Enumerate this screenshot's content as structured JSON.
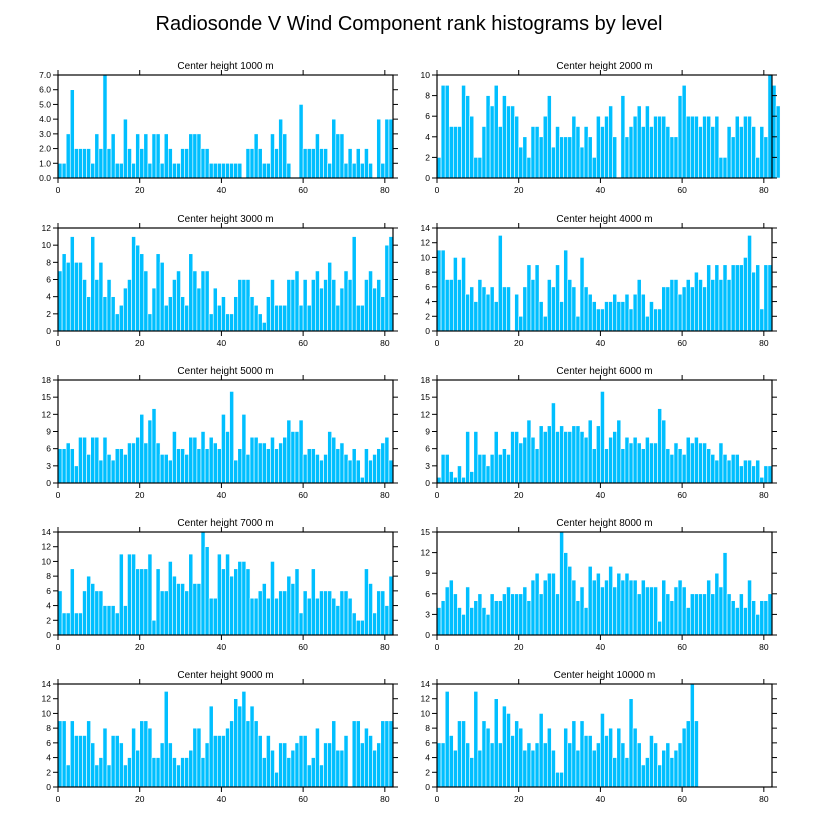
{
  "title": "Radiosonde V Wind Component rank histograms by level",
  "colors": {
    "bar": "#00bfff",
    "bar_edge": "#ffffff",
    "axis": "#000000"
  },
  "chart_data": [
    {
      "type": "bar",
      "title": "Center height 1000 m",
      "xlim": [
        0,
        82
      ],
      "ylim": [
        0,
        7
      ],
      "xticks": [
        0,
        20,
        40,
        60,
        80
      ],
      "yticks": [
        0,
        1,
        2,
        3,
        4,
        5,
        6,
        7
      ],
      "ytick_labels": [
        "0.0",
        "1.0",
        "2.0",
        "3.0",
        "4.0",
        "5.0",
        "6.0",
        "7.0"
      ],
      "values": [
        1,
        1,
        3,
        6,
        2,
        2,
        2,
        2,
        1,
        3,
        2,
        7,
        2,
        3,
        1,
        1,
        4,
        2,
        1,
        3,
        2,
        3,
        1,
        3,
        3,
        1,
        3,
        2,
        1,
        1,
        2,
        2,
        3,
        3,
        3,
        2,
        2,
        1,
        1,
        1,
        1,
        1,
        1,
        1,
        1,
        0,
        2,
        2,
        3,
        2,
        1,
        1,
        3,
        2,
        4,
        3,
        1,
        0,
        0,
        5,
        2,
        2,
        2,
        3,
        2,
        2,
        1,
        4,
        3,
        3,
        1,
        2,
        1,
        2,
        1,
        2,
        1,
        0,
        4,
        1,
        4,
        4
      ]
    },
    {
      "type": "bar",
      "title": "Center height 2000 m",
      "xlim": [
        0,
        82
      ],
      "ylim": [
        0,
        10
      ],
      "xticks": [
        0,
        20,
        40,
        60,
        80
      ],
      "yticks": [
        0,
        2,
        4,
        6,
        8,
        10
      ],
      "ytick_labels": [
        "0",
        "2",
        "4",
        "6",
        "8",
        "10"
      ],
      "values": [
        2,
        9,
        9,
        5,
        5,
        5,
        9,
        8,
        6,
        2,
        2,
        5,
        8,
        7,
        9,
        5,
        8,
        7,
        7,
        6,
        3,
        4,
        2,
        5,
        5,
        4,
        6,
        8,
        3,
        5,
        4,
        4,
        4,
        6,
        5,
        3,
        5,
        4,
        2,
        6,
        5,
        6,
        7,
        4,
        0,
        8,
        4,
        5,
        6,
        7,
        5,
        7,
        5,
        6,
        6,
        6,
        5,
        4,
        4,
        8,
        9,
        6,
        6,
        6,
        5,
        6,
        6,
        5,
        6,
        2,
        2,
        5,
        4,
        6,
        5,
        6,
        6,
        5,
        2,
        5,
        4,
        10,
        9,
        7
      ]
    },
    {
      "type": "bar",
      "title": "Center height 3000 m",
      "xlim": [
        0,
        82
      ],
      "ylim": [
        0,
        12
      ],
      "xticks": [
        0,
        20,
        40,
        60,
        80
      ],
      "yticks": [
        0,
        2,
        4,
        6,
        8,
        10,
        12
      ],
      "ytick_labels": [
        "0",
        "2",
        "4",
        "6",
        "8",
        "10",
        "12"
      ],
      "values": [
        7,
        9,
        8,
        11,
        8,
        8,
        6,
        4,
        11,
        6,
        8,
        4,
        6,
        4,
        2,
        3,
        5,
        6,
        11,
        10,
        9,
        7,
        2,
        5,
        9,
        8,
        3,
        4,
        6,
        7,
        4,
        3,
        9,
        7,
        5,
        7,
        7,
        2,
        5,
        3,
        4,
        2,
        2,
        4,
        6,
        6,
        6,
        4,
        3,
        2,
        1,
        4,
        6,
        3,
        3,
        3,
        6,
        6,
        7,
        3,
        6,
        3,
        6,
        7,
        5,
        6,
        8,
        6,
        3,
        5,
        7,
        6,
        11,
        3,
        3,
        6,
        7,
        5,
        6,
        4,
        10,
        11
      ]
    },
    {
      "type": "bar",
      "title": "Center height 4000 m",
      "xlim": [
        0,
        82
      ],
      "ylim": [
        0,
        14
      ],
      "xticks": [
        0,
        20,
        40,
        60,
        80
      ],
      "yticks": [
        0,
        2,
        4,
        6,
        8,
        10,
        12,
        14
      ],
      "ytick_labels": [
        "0",
        "2",
        "4",
        "6",
        "8",
        "10",
        "12",
        "14"
      ],
      "values": [
        11,
        11,
        7,
        7,
        10,
        7,
        10,
        5,
        6,
        4,
        7,
        6,
        5,
        6,
        4,
        13,
        6,
        6,
        0,
        5,
        2,
        6,
        9,
        7,
        9,
        4,
        2,
        7,
        6,
        9,
        4,
        11,
        7,
        6,
        2,
        10,
        6,
        5,
        4,
        3,
        3,
        4,
        4,
        5,
        4,
        4,
        5,
        3,
        5,
        7,
        5,
        2,
        4,
        3,
        3,
        6,
        6,
        7,
        7,
        5,
        6,
        7,
        6,
        8,
        7,
        6,
        9,
        7,
        9,
        7,
        9,
        7,
        9,
        9,
        9,
        10,
        13,
        8,
        9,
        3,
        9,
        9
      ]
    },
    {
      "type": "bar",
      "title": "Center height 5000 m",
      "xlim": [
        0,
        82
      ],
      "ylim": [
        0,
        18
      ],
      "xticks": [
        0,
        20,
        40,
        60,
        80
      ],
      "yticks": [
        0,
        3,
        6,
        9,
        12,
        15,
        18
      ],
      "ytick_labels": [
        "0",
        "3",
        "6",
        "9",
        "12",
        "15",
        "18"
      ],
      "values": [
        6,
        6,
        7,
        6,
        3,
        8,
        8,
        5,
        8,
        8,
        4,
        8,
        5,
        4,
        6,
        6,
        5,
        7,
        7,
        8,
        12,
        7,
        11,
        13,
        7,
        5,
        5,
        4,
        9,
        6,
        6,
        5,
        8,
        8,
        6,
        9,
        6,
        8,
        7,
        6,
        12,
        9,
        16,
        4,
        6,
        12,
        5,
        8,
        8,
        7,
        7,
        6,
        8,
        6,
        7,
        8,
        11,
        9,
        9,
        11,
        5,
        6,
        6,
        5,
        4,
        5,
        9,
        8,
        6,
        7,
        5,
        4,
        6,
        4,
        1,
        6,
        4,
        5,
        6,
        7,
        8,
        4
      ]
    },
    {
      "type": "bar",
      "title": "Center height 6000 m",
      "xlim": [
        0,
        82
      ],
      "ylim": [
        0,
        18
      ],
      "xticks": [
        0,
        20,
        40,
        60,
        80
      ],
      "yticks": [
        0,
        3,
        6,
        9,
        12,
        15,
        18
      ],
      "ytick_labels": [
        "0",
        "3",
        "6",
        "9",
        "12",
        "15",
        "18"
      ],
      "values": [
        1,
        5,
        5,
        2,
        1,
        3,
        1,
        9,
        2,
        9,
        5,
        5,
        3,
        5,
        9,
        5,
        6,
        5,
        9,
        9,
        7,
        8,
        11,
        8,
        6,
        10,
        9,
        10,
        14,
        9,
        10,
        9,
        9,
        10,
        10,
        9,
        8,
        11,
        6,
        10,
        16,
        6,
        8,
        9,
        11,
        6,
        8,
        7,
        8,
        7,
        6,
        8,
        7,
        7,
        13,
        11,
        6,
        5,
        7,
        6,
        5,
        8,
        7,
        8,
        7,
        7,
        6,
        5,
        4,
        7,
        5,
        4,
        5,
        5,
        3,
        4,
        4,
        3,
        4,
        1,
        3,
        3
      ]
    },
    {
      "type": "bar",
      "title": "Center height 7000 m",
      "xlim": [
        0,
        82
      ],
      "ylim": [
        0,
        14
      ],
      "xticks": [
        0,
        20,
        40,
        60,
        80
      ],
      "yticks": [
        0,
        2,
        4,
        6,
        8,
        10,
        12,
        14
      ],
      "ytick_labels": [
        "0",
        "2",
        "4",
        "6",
        "8",
        "10",
        "12",
        "14"
      ],
      "values": [
        6,
        3,
        3,
        9,
        3,
        3,
        6,
        8,
        7,
        6,
        6,
        4,
        4,
        4,
        3,
        11,
        4,
        11,
        11,
        9,
        9,
        9,
        11,
        2,
        9,
        6,
        6,
        10,
        8,
        7,
        7,
        6,
        11,
        7,
        7,
        14,
        12,
        5,
        5,
        11,
        9,
        11,
        8,
        9,
        10,
        10,
        9,
        5,
        5,
        6,
        7,
        5,
        10,
        5,
        6,
        6,
        8,
        7,
        9,
        3,
        6,
        5,
        9,
        5,
        6,
        6,
        6,
        5,
        4,
        6,
        6,
        5,
        3,
        2,
        2,
        9,
        7,
        3,
        6,
        6,
        4,
        8
      ]
    },
    {
      "type": "bar",
      "title": "Center height 8000 m",
      "xlim": [
        0,
        82
      ],
      "ylim": [
        0,
        15
      ],
      "xticks": [
        0,
        20,
        40,
        60,
        80
      ],
      "yticks": [
        0,
        3,
        6,
        9,
        12,
        15
      ],
      "ytick_labels": [
        "0",
        "3",
        "6",
        "9",
        "12",
        "15"
      ],
      "values": [
        4,
        5,
        7,
        8,
        6,
        4,
        3,
        7,
        4,
        5,
        6,
        4,
        3,
        6,
        5,
        5,
        6,
        7,
        6,
        6,
        6,
        7,
        5,
        8,
        9,
        6,
        8,
        9,
        9,
        6,
        15,
        12,
        10,
        8,
        5,
        7,
        4,
        10,
        8,
        9,
        7,
        8,
        10,
        7,
        9,
        8,
        9,
        8,
        8,
        6,
        8,
        7,
        7,
        7,
        2,
        8,
        6,
        5,
        7,
        8,
        7,
        4,
        6,
        6,
        6,
        6,
        8,
        6,
        9,
        7,
        12,
        6,
        5,
        4,
        6,
        4,
        8,
        5,
        3,
        5,
        5,
        6
      ]
    },
    {
      "type": "bar",
      "title": "Center height 9000 m",
      "xlim": [
        0,
        82
      ],
      "ylim": [
        0,
        14
      ],
      "xticks": [
        0,
        20,
        40,
        60,
        80
      ],
      "yticks": [
        0,
        2,
        4,
        6,
        8,
        10,
        12,
        14
      ],
      "ytick_labels": [
        "0",
        "2",
        "4",
        "6",
        "8",
        "10",
        "12",
        "14"
      ],
      "values": [
        9,
        9,
        3,
        9,
        7,
        7,
        7,
        9,
        6,
        3,
        4,
        8,
        3,
        7,
        7,
        6,
        3,
        4,
        8,
        5,
        9,
        9,
        8,
        4,
        4,
        6,
        13,
        6,
        4,
        3,
        4,
        4,
        5,
        8,
        8,
        4,
        6,
        11,
        7,
        7,
        7,
        8,
        9,
        12,
        11,
        13,
        9,
        11,
        9,
        7,
        4,
        7,
        5,
        2,
        6,
        6,
        4,
        5,
        6,
        7,
        7,
        3,
        4,
        8,
        3,
        6,
        6,
        9,
        5,
        5,
        7,
        0,
        9,
        9,
        6,
        8,
        7,
        5,
        6,
        9,
        9,
        9
      ]
    },
    {
      "type": "bar",
      "title": "Center height 10000 m",
      "xlim": [
        0,
        82
      ],
      "ylim": [
        0,
        14
      ],
      "xticks": [
        0,
        20,
        40,
        60,
        80
      ],
      "yticks": [
        0,
        2,
        4,
        6,
        8,
        10,
        12,
        14
      ],
      "ytick_labels": [
        "0",
        "2",
        "4",
        "6",
        "8",
        "10",
        "12",
        "14"
      ],
      "values": [
        6,
        6,
        13,
        7,
        5,
        9,
        9,
        6,
        4,
        13,
        5,
        9,
        8,
        6,
        12,
        6,
        11,
        10,
        7,
        9,
        8,
        5,
        6,
        5,
        6,
        10,
        6,
        8,
        5,
        2,
        2,
        8,
        6,
        9,
        5,
        9,
        7,
        7,
        5,
        6,
        10,
        7,
        8,
        4,
        8,
        6,
        4,
        12,
        8,
        6,
        3,
        4,
        7,
        6,
        3,
        5,
        6,
        4,
        5,
        6,
        8,
        9,
        14,
        9
      ]
    }
  ]
}
